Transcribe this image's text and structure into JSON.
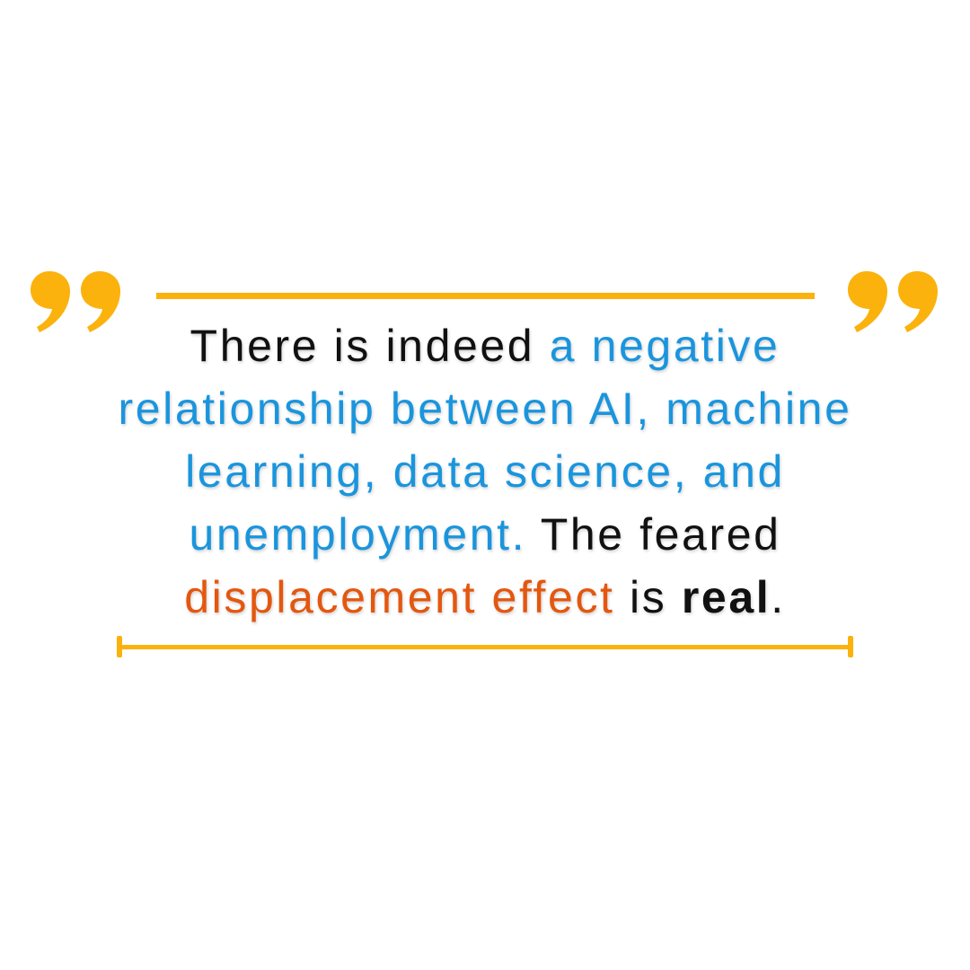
{
  "colors": {
    "accent": "#fbb20d",
    "text": "#111111",
    "highlight_blue": "#1a95dd",
    "highlight_orange": "#e4570f",
    "background": "#ffffff"
  },
  "icons": {
    "open_quote": "opening-quotation-mark",
    "close_quote": "closing-quotation-mark"
  },
  "quote": {
    "line1": {
      "a": "There is indeed ",
      "b": "a negative"
    },
    "line2": {
      "a": "relationship between AI, machine"
    },
    "line3": {
      "a": "learning, data science, and"
    },
    "line4": {
      "a": "unemployment.",
      "b": " The feared"
    },
    "line5": {
      "a": "displacement effect",
      "b": " is ",
      "c": "real",
      "d": "."
    }
  }
}
